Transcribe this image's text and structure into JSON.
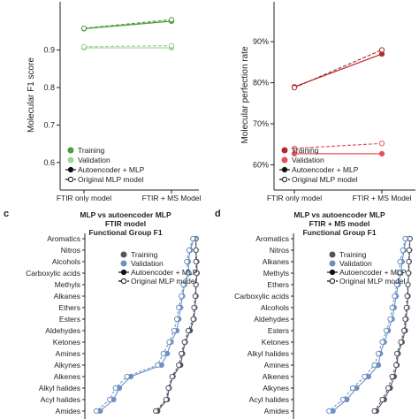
{
  "panel_labels": {
    "c": "c",
    "d": "d"
  },
  "colors": {
    "training_green": "#4f9a3c",
    "validation_green": "#9ed59a",
    "training_red": "#b22b2b",
    "validation_red": "#e3525c",
    "training_grey": "#4f5563",
    "validation_blue": "#6d91c2",
    "axis": "#222222"
  },
  "chart_data": [
    {
      "panel": "a",
      "type": "line",
      "title": "",
      "xlabel": "",
      "ylabel": "Molecular F1 score",
      "categories": [
        "FTIR only model",
        "FTIR + MS Model"
      ],
      "y_ticks": [
        "0.9",
        "0.8",
        "0.7",
        "0.6"
      ],
      "ylim": [
        0.55,
        1.01
      ],
      "series": [
        {
          "name": "Training",
          "color": "#4f9a3c",
          "model": "Autoencoder + MLP",
          "values": [
            0.957,
            0.977
          ]
        },
        {
          "name": "Training",
          "color": "#4f9a3c",
          "model": "Original MLP model",
          "values": [
            0.958,
            0.981
          ]
        },
        {
          "name": "Validation",
          "color": "#9ed59a",
          "model": "Autoencoder + MLP",
          "values": [
            0.906,
            0.906
          ]
        },
        {
          "name": "Validation",
          "color": "#9ed59a",
          "model": "Original MLP model",
          "values": [
            0.909,
            0.912
          ]
        }
      ],
      "legend": {
        "placement": "bottom-left",
        "entries": [
          "Training",
          "Validation",
          "Autoencoder + MLP",
          "Original MLP model"
        ]
      }
    },
    {
      "panel": "b",
      "type": "line",
      "title": "",
      "xlabel": "",
      "ylabel": "Molecular perfection rate",
      "categories": [
        "FTIR only model",
        "FTIR + MS Model"
      ],
      "y_ticks": [
        "90%",
        "80%",
        "70%",
        "60%"
      ],
      "ylim": [
        56,
        98
      ],
      "series": [
        {
          "name": "Training",
          "color": "#b22b2b",
          "model": "Autoencoder + MLP",
          "values": [
            79,
            87
          ]
        },
        {
          "name": "Training",
          "color": "#b22b2b",
          "model": "Original MLP model",
          "values": [
            78.8,
            88
          ]
        },
        {
          "name": "Validation",
          "color": "#e3525c",
          "model": "Autoencoder + MLP",
          "values": [
            62.7,
            62.7
          ]
        },
        {
          "name": "Validation",
          "color": "#e3525c",
          "model": "Original MLP model",
          "values": [
            64,
            65.2
          ]
        }
      ],
      "legend": {
        "placement": "bottom-left",
        "entries": [
          "Training",
          "Validation",
          "Autoencoder + MLP",
          "Original MLP model"
        ]
      }
    },
    {
      "panel": "c",
      "type": "line",
      "title": "MLP vs autoencoder MLP\nFTIR model\nFunctional Group F1",
      "categories": [
        "Aromatics",
        "Nitros",
        "Alcohols",
        "Carboxylic acids",
        "Methyls",
        "Alkanes",
        "Ethers",
        "Esters",
        "Aldehydes",
        "Ketones",
        "Amines",
        "Alkynes",
        "Alkenes",
        "Alkyl halides",
        "Acyl halides",
        "Amides"
      ],
      "series": [
        {
          "name": "Training",
          "color": "#4f5563",
          "model": "Autoencoder + MLP",
          "values": [
            0.99,
            0.99,
            0.992,
            0.993,
            0.99,
            0.99,
            0.987,
            0.985,
            0.975,
            0.962,
            0.955,
            0.95,
            0.93,
            0.92,
            0.915,
            0.89
          ]
        },
        {
          "name": "Training",
          "color": "#4f5563",
          "model": "Original MLP model",
          "values": [
            0.99,
            0.99,
            0.99,
            0.992,
            0.99,
            0.988,
            0.985,
            0.983,
            0.97,
            0.96,
            0.952,
            0.945,
            0.928,
            0.918,
            0.912,
            0.885
          ]
        },
        {
          "name": "Validation",
          "color": "#6d91c2",
          "model": "Autoencoder + MLP",
          "values": [
            0.985,
            0.975,
            0.97,
            0.972,
            0.96,
            0.955,
            0.95,
            0.945,
            0.94,
            0.925,
            0.915,
            0.9,
            0.82,
            0.79,
            0.775,
            0.74
          ]
        },
        {
          "name": "Validation",
          "color": "#6d91c2",
          "model": "Original MLP model",
          "values": [
            0.982,
            0.972,
            0.966,
            0.97,
            0.957,
            0.952,
            0.945,
            0.94,
            0.933,
            0.92,
            0.905,
            0.89,
            0.81,
            0.78,
            0.765,
            0.73
          ]
        }
      ],
      "legend": {
        "placement": "top-left",
        "entries": [
          "Training",
          "Validation",
          "Autoencoder + MLP",
          "Original MLP model"
        ]
      }
    },
    {
      "panel": "d",
      "type": "line",
      "title": "MLP vs autoencoder MLP\nFTIR + MS model\nFunctional Group F1",
      "categories": [
        "Aromatics",
        "Nitros",
        "Alkanes",
        "Methyls",
        "Ethers",
        "Carboxylic acids",
        "Alcohols",
        "Aldehydes",
        "Esters",
        "Ketones",
        "Alkyl halides",
        "Amines",
        "Alkenes",
        "Alkynes",
        "Acyl halides",
        "Amides"
      ],
      "series": [
        {
          "name": "Training",
          "color": "#4f5563",
          "model": "Autoencoder + MLP",
          "values": [
            0.995,
            0.994,
            0.993,
            0.992,
            0.99,
            0.99,
            0.988,
            0.985,
            0.983,
            0.975,
            0.965,
            0.962,
            0.955,
            0.945,
            0.93,
            0.91
          ]
        },
        {
          "name": "Training",
          "color": "#4f5563",
          "model": "Original MLP model",
          "values": [
            0.995,
            0.993,
            0.992,
            0.991,
            0.99,
            0.988,
            0.986,
            0.983,
            0.98,
            0.972,
            0.962,
            0.96,
            0.95,
            0.94,
            0.925,
            0.905
          ]
        },
        {
          "name": "Validation",
          "color": "#6d91c2",
          "model": "Autoencoder + MLP",
          "values": [
            0.985,
            0.98,
            0.975,
            0.972,
            0.965,
            0.96,
            0.955,
            0.95,
            0.94,
            0.93,
            0.92,
            0.915,
            0.89,
            0.86,
            0.835,
            0.8
          ]
        },
        {
          "name": "Validation",
          "color": "#6d91c2",
          "model": "Original MLP model",
          "values": [
            0.983,
            0.977,
            0.97,
            0.968,
            0.962,
            0.956,
            0.95,
            0.945,
            0.935,
            0.925,
            0.915,
            0.905,
            0.88,
            0.85,
            0.825,
            0.79
          ]
        }
      ],
      "legend": {
        "placement": "top-left",
        "entries": [
          "Training",
          "Validation",
          "Autoencoder + MLP",
          "Original MLP model"
        ]
      }
    }
  ]
}
